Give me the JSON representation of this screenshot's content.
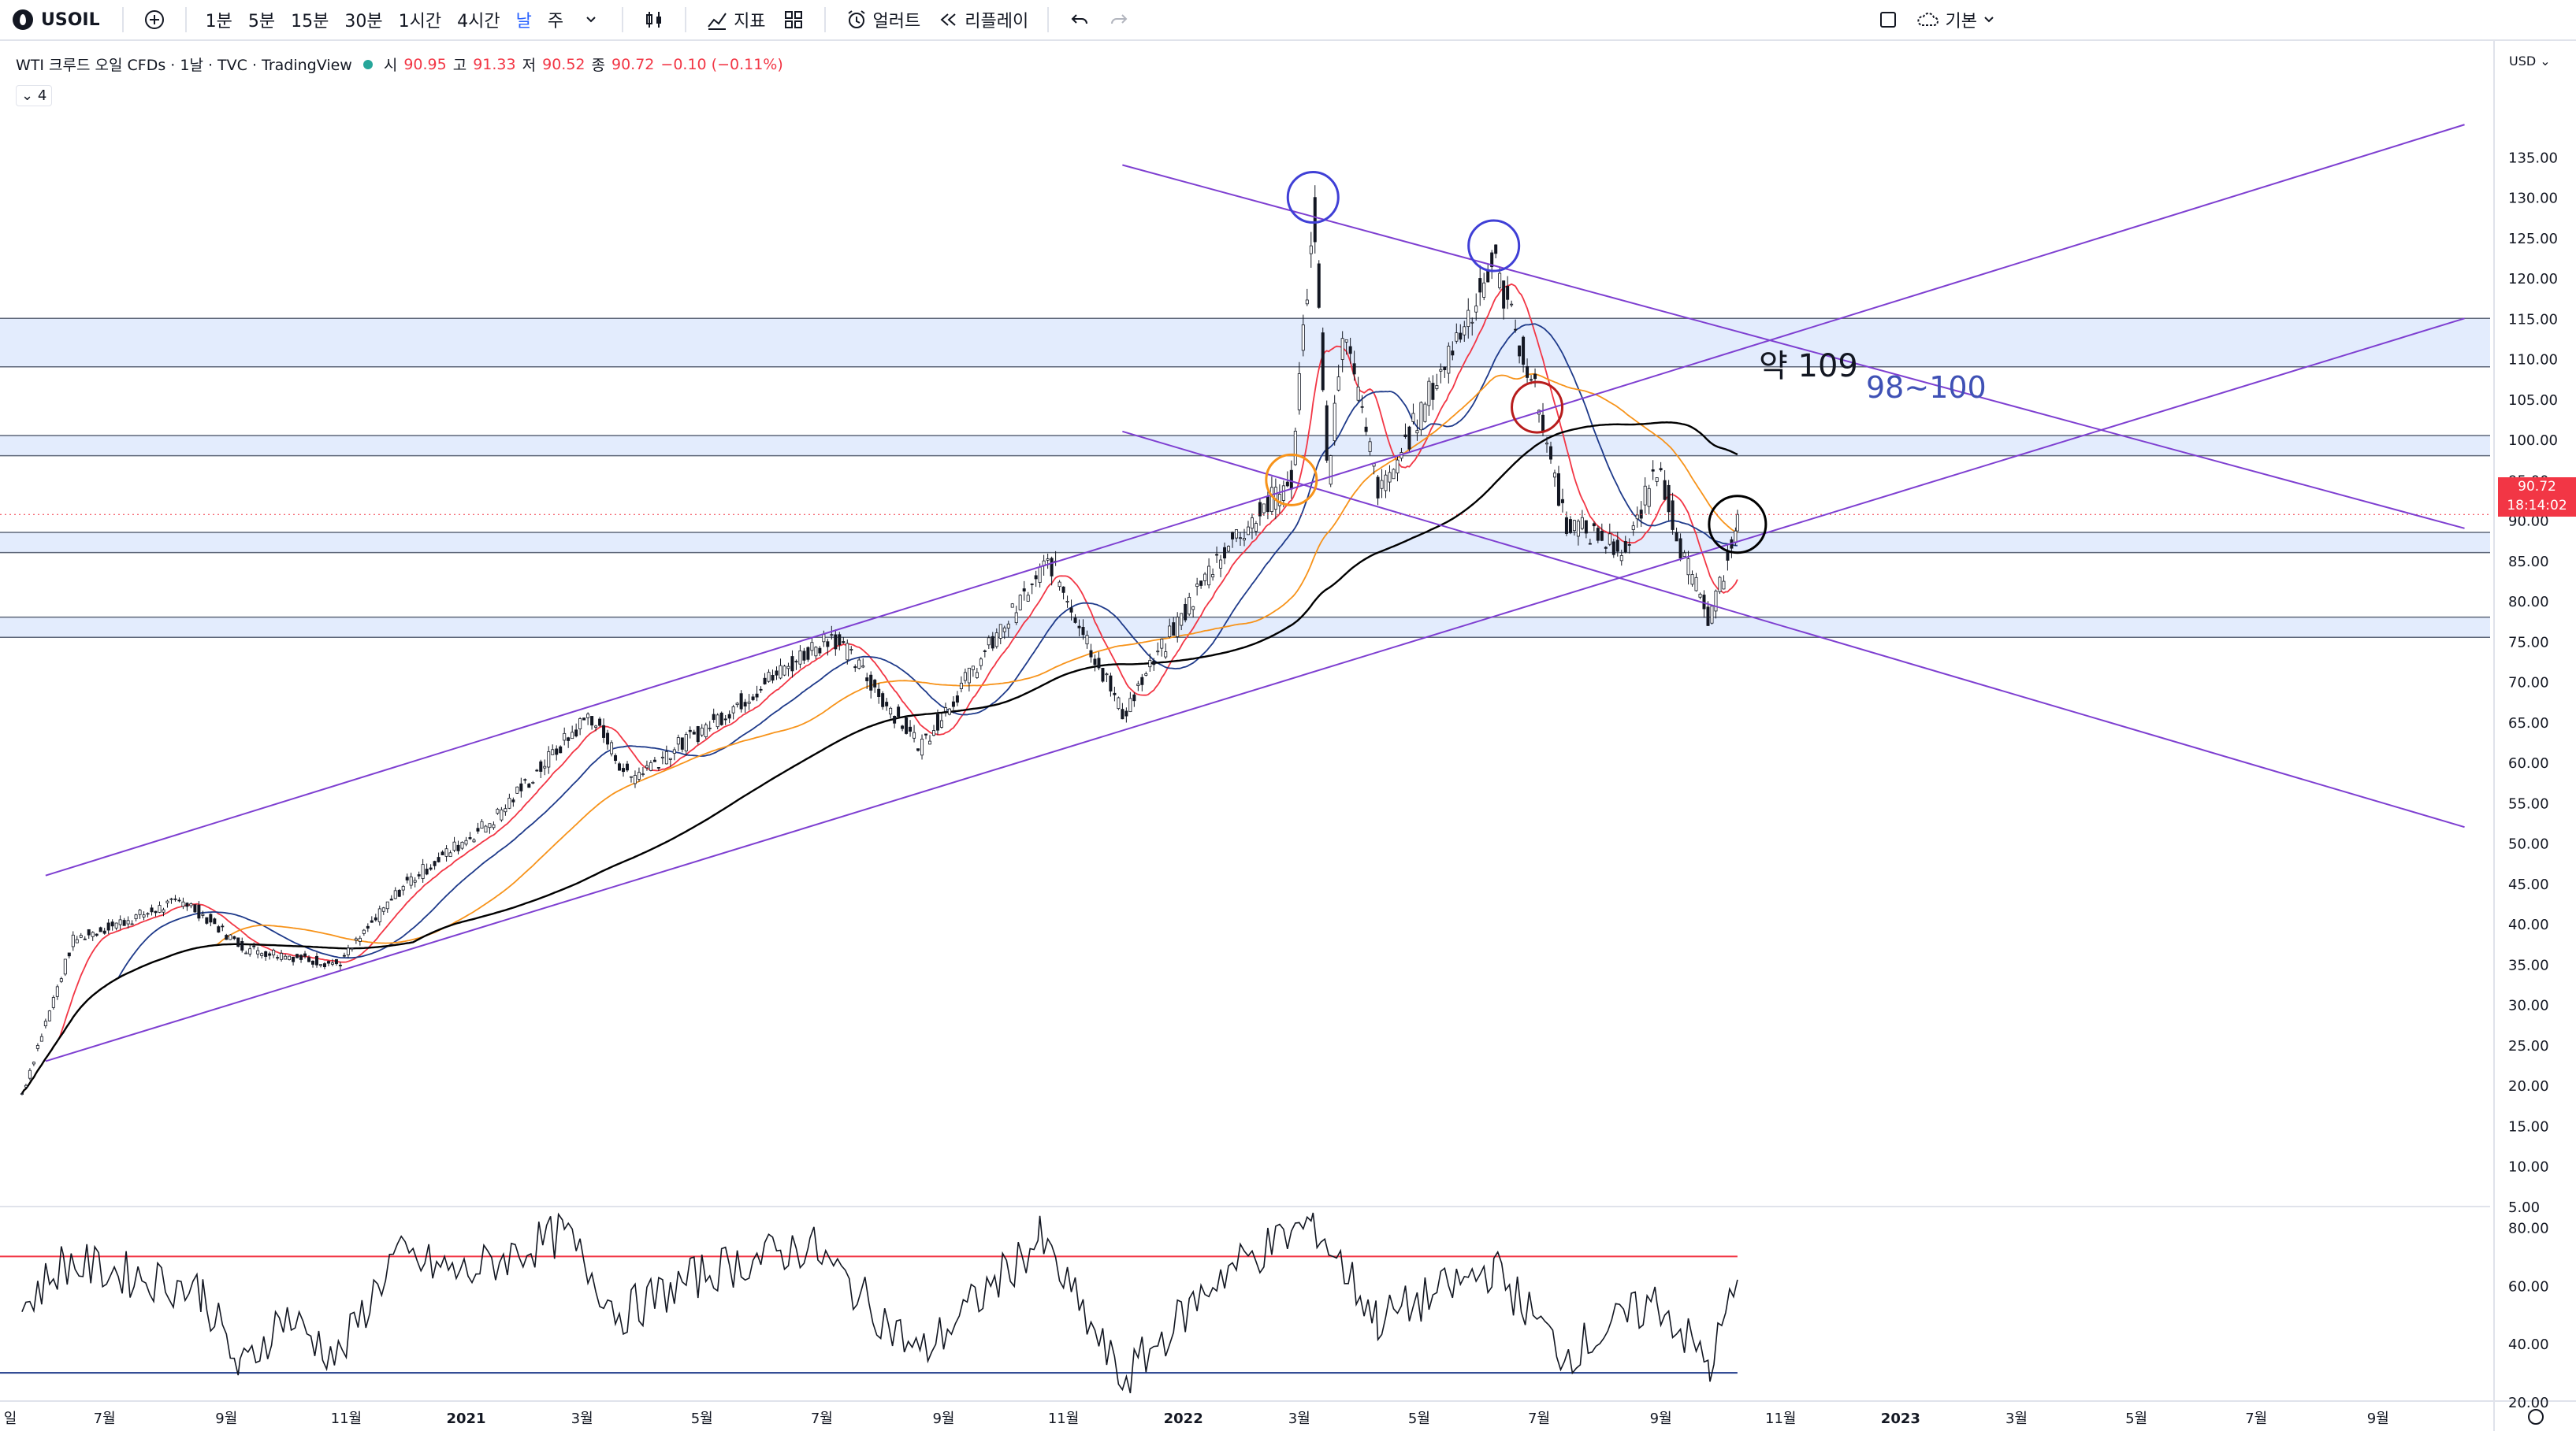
{
  "toolbar": {
    "symbol": "USOIL",
    "add_icon": "plus-circle-icon",
    "intervals": [
      "1분",
      "5분",
      "15분",
      "30분",
      "1시간",
      "4시간",
      "날",
      "주"
    ],
    "active_interval": "날",
    "indicators_label": "지표",
    "alert_label": "얼러트",
    "replay_label": "리플레이",
    "layout_label": "기본"
  },
  "legend": {
    "title": "WTI 크루드 오일 CFDs · 1날 · TVC · TradingView",
    "o_label": "시",
    "o": "90.95",
    "h_label": "고",
    "h": "91.33",
    "l_label": "저",
    "l": "90.52",
    "c_label": "종",
    "c": "90.72",
    "change": "−0.10 (−0.11%)",
    "indicator_count": "4"
  },
  "price_axis": {
    "currency": "USD",
    "current_price": "90.72",
    "countdown": "18:14:02"
  },
  "annotations": {
    "level_label": "약 109",
    "zone_label": "98~100"
  },
  "colors": {
    "up": "#26a69a",
    "down": "#ef5350",
    "candle_body": "#131722",
    "ma_red": "#f23645",
    "ma_blue": "#1e3a8a",
    "ma_orange": "#f7931a",
    "ma_black": "#000000",
    "trendline": "#7e3fd1",
    "zone_fill": "#e3ecfd",
    "rsi_upper": "#f23645",
    "rsi_lower": "#1e3a8a"
  },
  "chart_data": {
    "type": "candlestick",
    "price_ylim": [
      5,
      140
    ],
    "price_ticks": [
      "135.00",
      "130.00",
      "125.00",
      "120.00",
      "115.00",
      "110.00",
      "105.00",
      "100.00",
      "95.00",
      "90.00",
      "85.00",
      "80.00",
      "75.00",
      "70.00",
      "65.00",
      "60.00",
      "55.00",
      "50.00",
      "45.00",
      "40.00",
      "35.00",
      "30.00",
      "25.00",
      "20.00",
      "15.00",
      "10.00",
      "5.00"
    ],
    "x_ticks": [
      "일",
      "7월",
      "9월",
      "11월",
      "2021",
      "3월",
      "5월",
      "7월",
      "9월",
      "11월",
      "2022",
      "3월",
      "5월",
      "7월",
      "9월",
      "11월",
      "2023",
      "3월",
      "5월",
      "7월",
      "9월"
    ],
    "price_path": [
      [
        "2020-05-20",
        19
      ],
      [
        "2020-06-15",
        38
      ],
      [
        "2020-08-10",
        43
      ],
      [
        "2020-09-10",
        37
      ],
      [
        "2020-10-28",
        35
      ],
      [
        "2020-12-01",
        45
      ],
      [
        "2021-01-15",
        53
      ],
      [
        "2021-03-05",
        66
      ],
      [
        "2021-03-25",
        58
      ],
      [
        "2021-05-01",
        64
      ],
      [
        "2021-07-06",
        76
      ],
      [
        "2021-08-20",
        62
      ],
      [
        "2021-10-25",
        85
      ],
      [
        "2021-12-01",
        66
      ],
      [
        "2022-01-20",
        86
      ],
      [
        "2022-02-25",
        95
      ],
      [
        "2022-03-08",
        128
      ],
      [
        "2022-03-16",
        95
      ],
      [
        "2022-03-23",
        114
      ],
      [
        "2022-04-11",
        93
      ],
      [
        "2022-05-15",
        110
      ],
      [
        "2022-06-08",
        122
      ],
      [
        "2022-06-30",
        105
      ],
      [
        "2022-07-14",
        90
      ],
      [
        "2022-08-15",
        86
      ],
      [
        "2022-08-30",
        97
      ],
      [
        "2022-09-12",
        86
      ],
      [
        "2022-09-26",
        77
      ],
      [
        "2022-10-10",
        90.72
      ]
    ],
    "horizontal_zones": [
      [
        109,
        115
      ],
      [
        98,
        100.5
      ],
      [
        86,
        88.5
      ],
      [
        75.5,
        78
      ]
    ],
    "trendlines": [
      {
        "from": [
          "2020-06-01",
          46
        ],
        "to": [
          "2023-10-15",
          139
        ]
      },
      {
        "from": [
          "2020-06-01",
          23
        ],
        "to": [
          "2023-10-15",
          115
        ]
      },
      {
        "from": [
          "2021-12-01",
          134
        ],
        "to": [
          "2023-10-15",
          89
        ]
      },
      {
        "from": [
          "2021-12-01",
          101
        ],
        "to": [
          "2023-10-15",
          52
        ]
      }
    ],
    "marker_circles": [
      {
        "date": "2022-03-08",
        "price": 130,
        "color": "#3f3fd6"
      },
      {
        "date": "2022-06-08",
        "price": 124,
        "color": "#3f3fd6"
      },
      {
        "date": "2022-02-25",
        "price": 95,
        "color": "#f7931a"
      },
      {
        "date": "2022-06-30",
        "price": 104,
        "color": "#b71c1c"
      },
      {
        "date": "2022-10-10",
        "price": 89.5,
        "color": "#000000"
      }
    ],
    "rsi": {
      "ylim": [
        20,
        85
      ],
      "ticks": [
        "80.00",
        "60.00",
        "40.00",
        "20.00"
      ],
      "upper": 70,
      "lower": 30,
      "path": [
        [
          "2020-05-20",
          52
        ],
        [
          "2020-06-10",
          68
        ],
        [
          "2020-07-20",
          63
        ],
        [
          "2020-08-20",
          58
        ],
        [
          "2020-09-08",
          30
        ],
        [
          "2020-09-30",
          50
        ],
        [
          "2020-10-28",
          35
        ],
        [
          "2020-11-25",
          70
        ],
        [
          "2020-12-31",
          64
        ],
        [
          "2021-02-20",
          78
        ],
        [
          "2021-03-20",
          50
        ],
        [
          "2021-05-05",
          65
        ],
        [
          "2021-06-25",
          74
        ],
        [
          "2021-08-20",
          36
        ],
        [
          "2021-10-20",
          76
        ],
        [
          "2021-12-01",
          27
        ],
        [
          "2022-01-20",
          64
        ],
        [
          "2022-03-08",
          82
        ],
        [
          "2022-04-10",
          48
        ],
        [
          "2022-06-08",
          66
        ],
        [
          "2022-07-14",
          36
        ],
        [
          "2022-08-30",
          55
        ],
        [
          "2022-09-26",
          32
        ],
        [
          "2022-10-10",
          62
        ]
      ]
    }
  }
}
